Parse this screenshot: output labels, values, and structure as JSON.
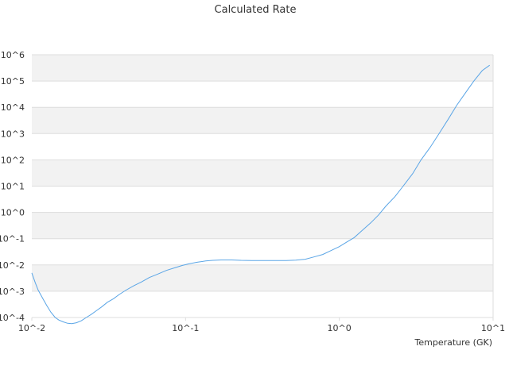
{
  "chart_data": {
    "type": "line",
    "title": "Calculated Rate",
    "xlabel": "Temperature (GK)",
    "ylabel": "",
    "x_scale": "log",
    "y_scale": "log",
    "xlim": [
      0.01,
      10
    ],
    "ylim": [
      0.0001,
      1000000
    ],
    "x_tick_labels": [
      "10^-2",
      "10^-1",
      "10^0",
      "10^1"
    ],
    "y_tick_labels": [
      "10^-4",
      "10^-3",
      "10^-2",
      "10^-1",
      "10^0",
      "10^1",
      "10^2",
      "10^3",
      "10^4",
      "10^5",
      "10^6"
    ],
    "grid": "alternating horizontal bands",
    "legend": "none",
    "colors": {
      "line": "#5aa5e6",
      "band": "#f2f2f2",
      "gridline": "#dddddd",
      "text": "#333333"
    },
    "series": [
      {
        "x": [
          0.01,
          0.0105,
          0.011,
          0.0118,
          0.0125,
          0.0133,
          0.0142,
          0.015,
          0.016,
          0.0171,
          0.0182,
          0.0195,
          0.021,
          0.0226,
          0.0243,
          0.0262,
          0.0284,
          0.031,
          0.034,
          0.037,
          0.041,
          0.046,
          0.052,
          0.058,
          0.066,
          0.075,
          0.085,
          0.095,
          0.105,
          0.12,
          0.135,
          0.15,
          0.17,
          0.2,
          0.23,
          0.27,
          0.32,
          0.38,
          0.45,
          0.52,
          0.6,
          0.68,
          0.78,
          0.88,
          1.0,
          1.12,
          1.25,
          1.4,
          1.6,
          1.8,
          2.0,
          2.3,
          2.6,
          3.0,
          3.4,
          3.9,
          4.5,
          5.1,
          5.8,
          6.6,
          7.5,
          8.5,
          9.5
        ],
        "y": [
          0.005,
          0.0022,
          0.0011,
          0.00052,
          0.00029,
          0.00016,
          0.0001,
          8e-05,
          6.8e-05,
          6e-05,
          5.8e-05,
          6.3e-05,
          7.5e-05,
          0.0001,
          0.00013,
          0.00018,
          0.00025,
          0.00038,
          0.00052,
          0.00075,
          0.0011,
          0.0016,
          0.0023,
          0.0033,
          0.0045,
          0.0062,
          0.0078,
          0.0095,
          0.011,
          0.0128,
          0.0142,
          0.015,
          0.0155,
          0.0155,
          0.015,
          0.0148,
          0.0148,
          0.0148,
          0.0148,
          0.0152,
          0.0165,
          0.02,
          0.025,
          0.035,
          0.05,
          0.075,
          0.11,
          0.2,
          0.4,
          0.8,
          1.7,
          4,
          10,
          30,
          100,
          300,
          1100,
          3500,
          12000,
          35000,
          100000,
          250000,
          400000
        ]
      }
    ]
  }
}
